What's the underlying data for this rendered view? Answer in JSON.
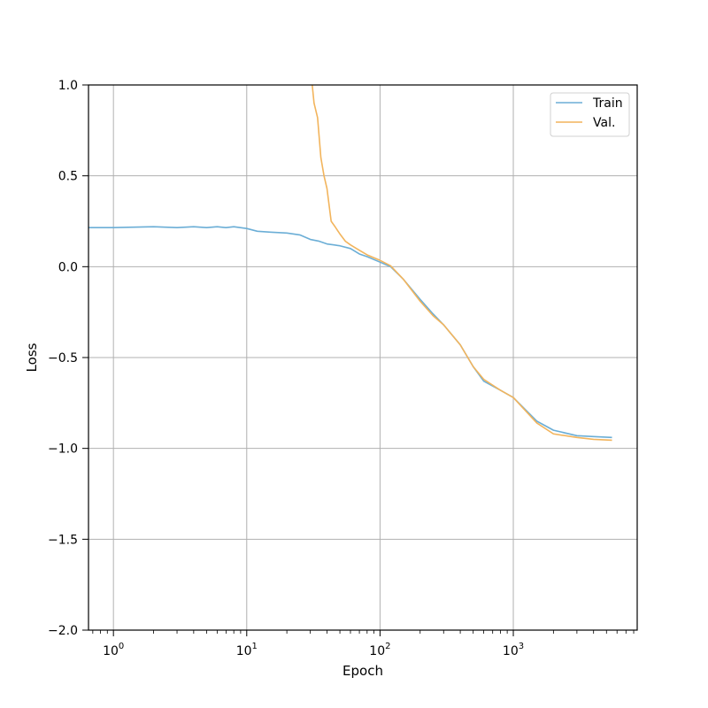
{
  "chart_data": {
    "type": "line",
    "title": "",
    "xlabel": "Epoch",
    "ylabel": "Loss",
    "xscale": "log",
    "xlim": [
      0.65,
      8500
    ],
    "ylim": [
      -2.0,
      1.0
    ],
    "grid": true,
    "legend_position": "top-right",
    "x_ticks": [
      1,
      10,
      100,
      1000
    ],
    "x_tick_labels": [
      {
        "base": "10",
        "exp": "0"
      },
      {
        "base": "10",
        "exp": "1"
      },
      {
        "base": "10",
        "exp": "2"
      },
      {
        "base": "10",
        "exp": "3"
      }
    ],
    "y_ticks": [
      1.0,
      0.5,
      0.0,
      -0.5,
      -1.0,
      -1.5,
      -2.0
    ],
    "y_tick_labels": [
      "1.0",
      "0.5",
      "0.0",
      "−0.5",
      "−1.0",
      "−1.5",
      "−2.0"
    ],
    "series": [
      {
        "name": "Train",
        "color": "#6baed6",
        "x": [
          0.65,
          1,
          2,
          3,
          4,
          5,
          6,
          7,
          8,
          10,
          12,
          15,
          20,
          25,
          30,
          35,
          40,
          45,
          50,
          60,
          70,
          80,
          100,
          120,
          150,
          200,
          250,
          300,
          400,
          500,
          600,
          800,
          1000,
          1500,
          2000,
          3000,
          4000,
          5500
        ],
        "y": [
          0.215,
          0.215,
          0.22,
          0.215,
          0.22,
          0.215,
          0.22,
          0.215,
          0.22,
          0.21,
          0.195,
          0.19,
          0.185,
          0.175,
          0.15,
          0.14,
          0.125,
          0.12,
          0.115,
          0.1,
          0.07,
          0.055,
          0.025,
          0.0,
          -0.07,
          -0.18,
          -0.26,
          -0.32,
          -0.43,
          -0.55,
          -0.63,
          -0.68,
          -0.72,
          -0.85,
          -0.9,
          -0.93,
          -0.935,
          -0.94
        ]
      },
      {
        "name": "Val.",
        "color": "#f2b45c",
        "x": [
          31,
          32,
          34,
          36,
          38,
          40,
          43,
          46,
          50,
          55,
          60,
          70,
          80,
          100,
          120,
          150,
          200,
          250,
          300,
          400,
          500,
          600,
          800,
          1000,
          1500,
          2000,
          3000,
          4000,
          5500
        ],
        "y": [
          1.0,
          0.9,
          0.82,
          0.6,
          0.5,
          0.43,
          0.25,
          0.22,
          0.18,
          0.14,
          0.12,
          0.09,
          0.065,
          0.035,
          0.005,
          -0.07,
          -0.19,
          -0.27,
          -0.32,
          -0.43,
          -0.55,
          -0.62,
          -0.68,
          -0.72,
          -0.86,
          -0.92,
          -0.94,
          -0.95,
          -0.955
        ]
      }
    ]
  }
}
